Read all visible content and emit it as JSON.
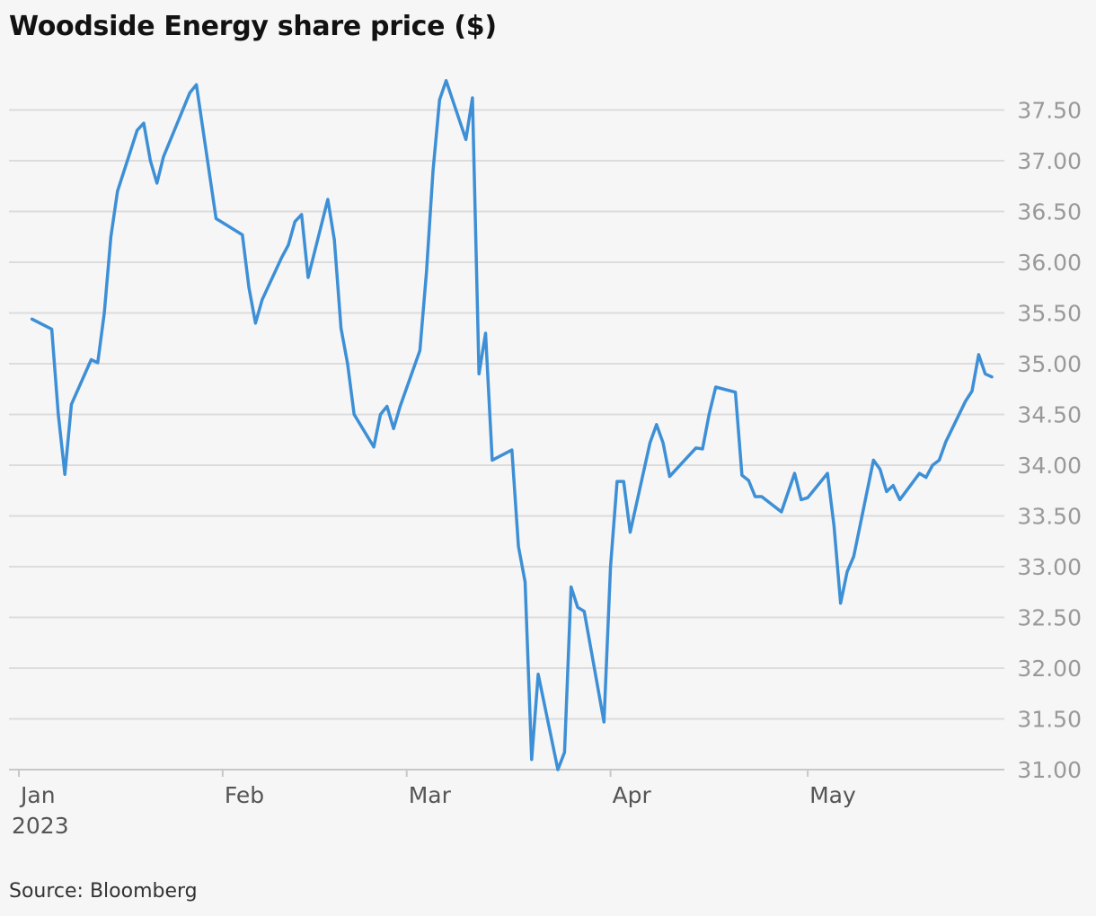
{
  "title": "Woodside Energy share price ($)",
  "source": "Source: Bloomberg",
  "colors": {
    "line": "#3d8fd6",
    "background": "#f6f6f6",
    "grid": "#dcdcdc"
  },
  "chart_data": {
    "type": "line",
    "title": "Woodside Energy share price ($)",
    "xlabel": "",
    "ylabel": "",
    "x_tick_labels": [
      {
        "label": "Jan",
        "date": "2023-01-01",
        "sub": "2023"
      },
      {
        "label": "Feb",
        "date": "2023-02-01"
      },
      {
        "label": "Mar",
        "date": "2023-03-01"
      },
      {
        "label": "Apr",
        "date": "2023-04-01"
      },
      {
        "label": "May",
        "date": "2023-05-01"
      }
    ],
    "y_tick_labels": [
      "31.00",
      "31.50",
      "32.00",
      "32.50",
      "33.00",
      "33.50",
      "34.00",
      "34.50",
      "35.00",
      "35.50",
      "36.00",
      "36.50",
      "37.00",
      "37.50"
    ],
    "ylim": [
      31.0,
      37.85
    ],
    "xlim": [
      "2023-01-01",
      "2023-05-29"
    ],
    "grid": true,
    "y_axis_side": "right",
    "series": [
      {
        "values": [
          [
            "2023-01-03",
            35.44
          ],
          [
            "2023-01-06",
            35.34
          ],
          [
            "2023-01-07",
            34.5
          ],
          [
            "2023-01-08",
            33.91
          ],
          [
            "2023-01-09",
            34.6
          ],
          [
            "2023-01-12",
            35.04
          ],
          [
            "2023-01-13",
            35.01
          ],
          [
            "2023-01-14",
            35.5
          ],
          [
            "2023-01-15",
            36.25
          ],
          [
            "2023-01-16",
            36.7
          ],
          [
            "2023-01-19",
            37.3
          ],
          [
            "2023-01-20",
            37.37
          ],
          [
            "2023-01-21",
            37.0
          ],
          [
            "2023-01-22",
            36.78
          ],
          [
            "2023-01-23",
            37.04
          ],
          [
            "2023-01-27",
            37.67
          ],
          [
            "2023-01-28",
            37.75
          ],
          [
            "2023-01-31",
            36.43
          ],
          [
            "2023-02-04",
            36.27
          ],
          [
            "2023-02-05",
            35.75
          ],
          [
            "2023-02-06",
            35.4
          ],
          [
            "2023-02-07",
            35.63
          ],
          [
            "2023-02-10",
            36.05
          ],
          [
            "2023-02-11",
            36.17
          ],
          [
            "2023-02-12",
            36.4
          ],
          [
            "2023-02-13",
            36.47
          ],
          [
            "2023-02-14",
            35.85
          ],
          [
            "2023-02-17",
            36.62
          ],
          [
            "2023-02-18",
            36.22
          ],
          [
            "2023-02-19",
            35.35
          ],
          [
            "2023-02-20",
            35.0
          ],
          [
            "2023-02-21",
            34.5
          ],
          [
            "2023-02-24",
            34.18
          ],
          [
            "2023-02-25",
            34.5
          ],
          [
            "2023-02-26",
            34.58
          ],
          [
            "2023-02-27",
            34.36
          ],
          [
            "2023-02-28",
            34.58
          ],
          [
            "2023-03-03",
            35.13
          ],
          [
            "2023-03-04",
            35.9
          ],
          [
            "2023-03-05",
            36.9
          ],
          [
            "2023-03-06",
            37.6
          ],
          [
            "2023-03-07",
            37.79
          ],
          [
            "2023-03-10",
            37.21
          ],
          [
            "2023-03-11",
            37.62
          ],
          [
            "2023-03-12",
            34.9
          ],
          [
            "2023-03-13",
            35.3
          ],
          [
            "2023-03-14",
            34.05
          ],
          [
            "2023-03-17",
            34.15
          ],
          [
            "2023-03-18",
            33.2
          ],
          [
            "2023-03-19",
            32.85
          ],
          [
            "2023-03-20",
            31.1
          ],
          [
            "2023-03-21",
            31.94
          ],
          [
            "2023-03-24",
            31.0
          ],
          [
            "2023-03-25",
            31.17
          ],
          [
            "2023-03-26",
            32.8
          ],
          [
            "2023-03-27",
            32.6
          ],
          [
            "2023-03-28",
            32.56
          ],
          [
            "2023-03-31",
            31.47
          ],
          [
            "2023-04-01",
            33.0
          ],
          [
            "2023-04-02",
            33.84
          ],
          [
            "2023-04-03",
            33.84
          ],
          [
            "2023-04-04",
            33.34
          ],
          [
            "2023-04-07",
            34.22
          ],
          [
            "2023-04-08",
            34.4
          ],
          [
            "2023-04-09",
            34.22
          ],
          [
            "2023-04-10",
            33.89
          ],
          [
            "2023-04-14",
            34.17
          ],
          [
            "2023-04-15",
            34.16
          ],
          [
            "2023-04-16",
            34.5
          ],
          [
            "2023-04-17",
            34.77
          ],
          [
            "2023-04-20",
            34.72
          ],
          [
            "2023-04-21",
            33.9
          ],
          [
            "2023-04-22",
            33.85
          ],
          [
            "2023-04-23",
            33.69
          ],
          [
            "2023-04-24",
            33.69
          ],
          [
            "2023-04-27",
            33.54
          ],
          [
            "2023-04-29",
            33.92
          ],
          [
            "2023-04-30",
            33.66
          ],
          [
            "2023-05-01",
            33.68
          ],
          [
            "2023-05-04",
            33.92
          ],
          [
            "2023-05-05",
            33.4
          ],
          [
            "2023-05-06",
            32.64
          ],
          [
            "2023-05-07",
            32.95
          ],
          [
            "2023-05-08",
            33.1
          ],
          [
            "2023-05-11",
            34.05
          ],
          [
            "2023-05-12",
            33.96
          ],
          [
            "2023-05-13",
            33.74
          ],
          [
            "2023-05-14",
            33.8
          ],
          [
            "2023-05-15",
            33.66
          ],
          [
            "2023-05-18",
            33.92
          ],
          [
            "2023-05-19",
            33.88
          ],
          [
            "2023-05-20",
            34.0
          ],
          [
            "2023-05-21",
            34.05
          ],
          [
            "2023-05-22",
            34.23
          ],
          [
            "2023-05-25",
            34.63
          ],
          [
            "2023-05-26",
            34.73
          ],
          [
            "2023-05-27",
            35.09
          ],
          [
            "2023-05-28",
            34.9
          ],
          [
            "2023-05-29",
            34.87
          ]
        ]
      }
    ]
  }
}
